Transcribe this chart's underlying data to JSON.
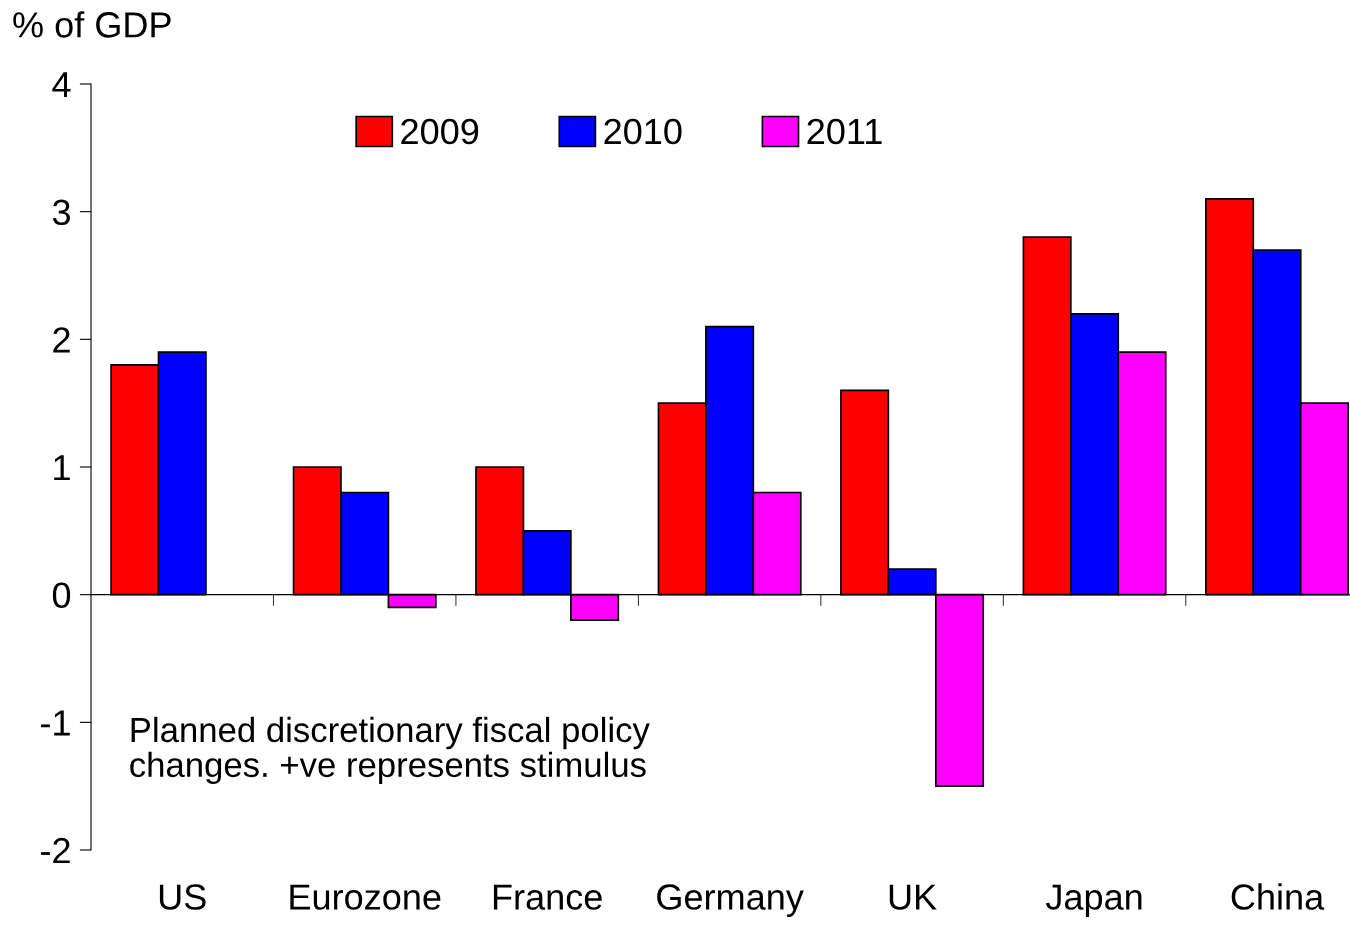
{
  "chart_data": {
    "type": "bar",
    "ylabel": "% of GDP",
    "categories": [
      "US",
      "Eurozone",
      "France",
      "Germany",
      "UK",
      "Japan",
      "China"
    ],
    "series": [
      {
        "name": "2009",
        "color": "#ff0000",
        "values": [
          1.8,
          1.0,
          1.0,
          1.5,
          1.6,
          2.8,
          3.1
        ]
      },
      {
        "name": "2010",
        "color": "#0000ff",
        "values": [
          1.9,
          0.8,
          0.5,
          2.1,
          0.2,
          2.2,
          2.7
        ]
      },
      {
        "name": "2011",
        "color": "#ff00ff",
        "values": [
          null,
          -0.1,
          -0.2,
          0.8,
          -1.5,
          1.9,
          1.5
        ]
      }
    ],
    "ylim": [
      -2,
      4
    ],
    "yticks": [
      -2,
      -1,
      0,
      1,
      2,
      3,
      4
    ],
    "annotations": [
      "Planned discretionary fiscal policy\nchanges. +ve represents stimulus"
    ],
    "legend": "top"
  }
}
